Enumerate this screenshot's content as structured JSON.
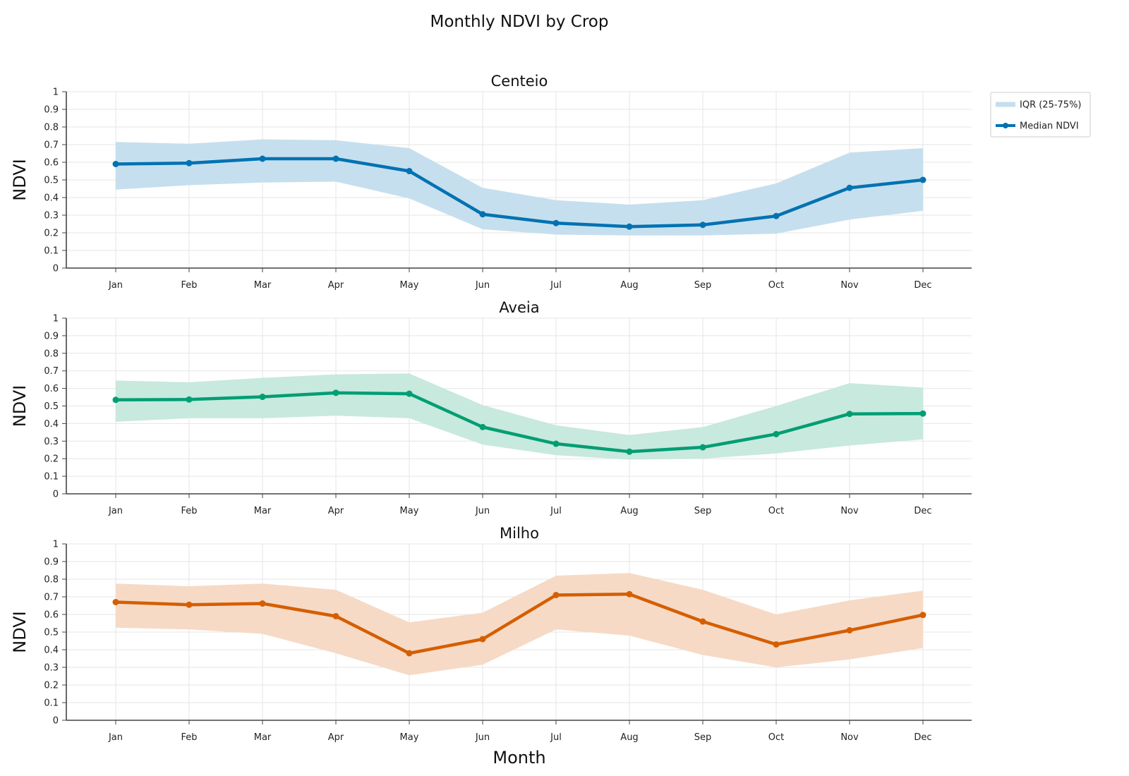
{
  "title": "Monthly NDVI by Crop",
  "chart_data": [
    {
      "type": "line",
      "title": "Centeio",
      "xlabel": "",
      "ylabel": "NDVI",
      "ylim": [
        0,
        1
      ],
      "yticks": [
        "0",
        "0.1",
        "0.2",
        "0.3",
        "0.4",
        "0.5",
        "0.6",
        "0.7",
        "0.8",
        "0.9",
        "1"
      ],
      "categories": [
        "Jan",
        "Feb",
        "Mar",
        "Apr",
        "May",
        "Jun",
        "Jul",
        "Aug",
        "Sep",
        "Oct",
        "Nov",
        "Dec"
      ],
      "color": "#0072b2",
      "band_color": "#c6dfee",
      "series": [
        {
          "name": "Median NDVI",
          "values": [
            0.59,
            0.595,
            0.62,
            0.62,
            0.55,
            0.305,
            0.255,
            0.235,
            0.245,
            0.295,
            0.455,
            0.5
          ]
        },
        {
          "name": "IQR (25-75%)",
          "lower": [
            0.445,
            0.47,
            0.485,
            0.49,
            0.395,
            0.22,
            0.19,
            0.185,
            0.185,
            0.195,
            0.275,
            0.325
          ],
          "upper": [
            0.715,
            0.705,
            0.73,
            0.725,
            0.68,
            0.455,
            0.385,
            0.36,
            0.385,
            0.48,
            0.655,
            0.68
          ]
        }
      ],
      "grid": true,
      "legend": "right"
    },
    {
      "type": "line",
      "title": "Aveia",
      "xlabel": "",
      "ylabel": "NDVI",
      "ylim": [
        0,
        1
      ],
      "yticks": [
        "0",
        "0.1",
        "0.2",
        "0.3",
        "0.4",
        "0.5",
        "0.6",
        "0.7",
        "0.8",
        "0.9",
        "1"
      ],
      "categories": [
        "Jan",
        "Feb",
        "Mar",
        "Apr",
        "May",
        "Jun",
        "Jul",
        "Aug",
        "Sep",
        "Oct",
        "Nov",
        "Dec"
      ],
      "color": "#009e73",
      "band_color": "#c8e9dd",
      "series": [
        {
          "name": "Median NDVI",
          "values": [
            0.535,
            0.537,
            0.552,
            0.575,
            0.57,
            0.38,
            0.285,
            0.24,
            0.265,
            0.34,
            0.455,
            0.457
          ]
        },
        {
          "name": "IQR (25-75%)",
          "lower": [
            0.41,
            0.43,
            0.43,
            0.445,
            0.43,
            0.28,
            0.22,
            0.195,
            0.2,
            0.23,
            0.275,
            0.31
          ],
          "upper": [
            0.645,
            0.635,
            0.66,
            0.68,
            0.685,
            0.505,
            0.39,
            0.335,
            0.38,
            0.5,
            0.63,
            0.605
          ]
        }
      ],
      "grid": true
    },
    {
      "type": "line",
      "title": "Milho",
      "xlabel": "Month",
      "ylabel": "NDVI",
      "ylim": [
        0,
        1
      ],
      "yticks": [
        "0",
        "0.1",
        "0.2",
        "0.3",
        "0.4",
        "0.5",
        "0.6",
        "0.7",
        "0.8",
        "0.9",
        "1"
      ],
      "categories": [
        "Jan",
        "Feb",
        "Mar",
        "Apr",
        "May",
        "Jun",
        "Jul",
        "Aug",
        "Sep",
        "Oct",
        "Nov",
        "Dec"
      ],
      "color": "#d55e00",
      "band_color": "#f6dac6",
      "series": [
        {
          "name": "Median NDVI",
          "values": [
            0.67,
            0.655,
            0.662,
            0.59,
            0.38,
            0.46,
            0.71,
            0.715,
            0.56,
            0.43,
            0.51,
            0.597
          ]
        },
        {
          "name": "IQR (25-75%)",
          "lower": [
            0.525,
            0.515,
            0.49,
            0.38,
            0.255,
            0.315,
            0.515,
            0.48,
            0.37,
            0.3,
            0.345,
            0.41
          ],
          "upper": [
            0.775,
            0.76,
            0.775,
            0.74,
            0.555,
            0.61,
            0.82,
            0.835,
            0.74,
            0.6,
            0.68,
            0.735
          ]
        }
      ],
      "grid": true
    }
  ],
  "legend": {
    "items": [
      {
        "label": "IQR (25-75%)",
        "kind": "band",
        "color": "#c6dfee"
      },
      {
        "label": "Median NDVI",
        "kind": "line",
        "color": "#0072b2"
      }
    ]
  }
}
